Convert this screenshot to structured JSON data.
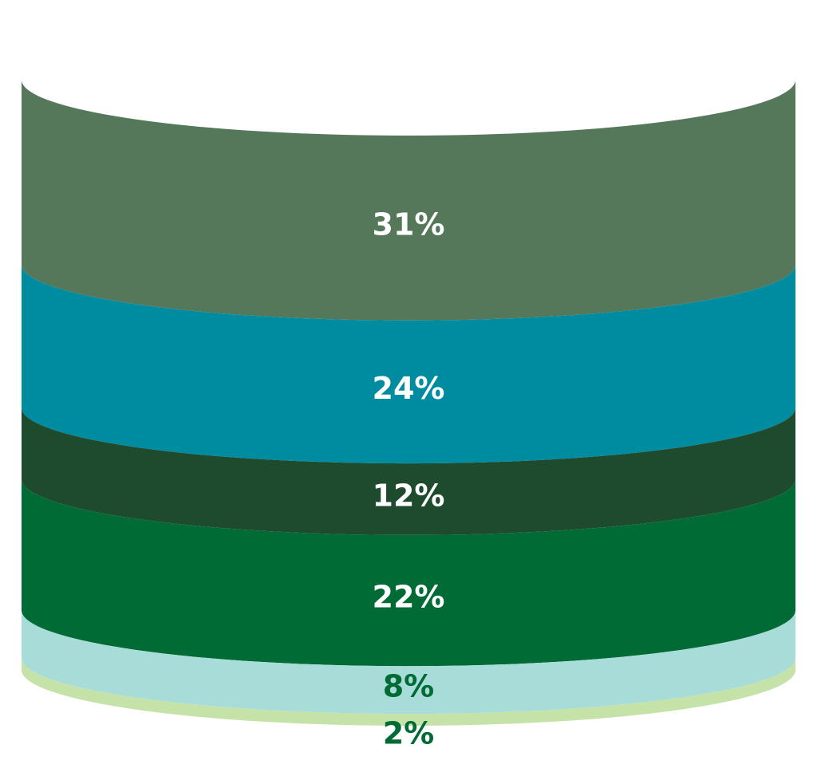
{
  "chart_data": {
    "type": "cylinder",
    "values": [
      31,
      24,
      12,
      22,
      8,
      2
    ],
    "value_labels": [
      "31%",
      "24%",
      "12%",
      "22%",
      "8%",
      "2%"
    ],
    "colors": [
      "#55785a",
      "#008ca0",
      "#1e4a2d",
      "#006b35",
      "#a8dcd8",
      "#c5e3a8"
    ],
    "label_colors": [
      "#ffffff",
      "#ffffff",
      "#ffffff",
      "#ffffff",
      "#006b35",
      "#006b35"
    ]
  }
}
